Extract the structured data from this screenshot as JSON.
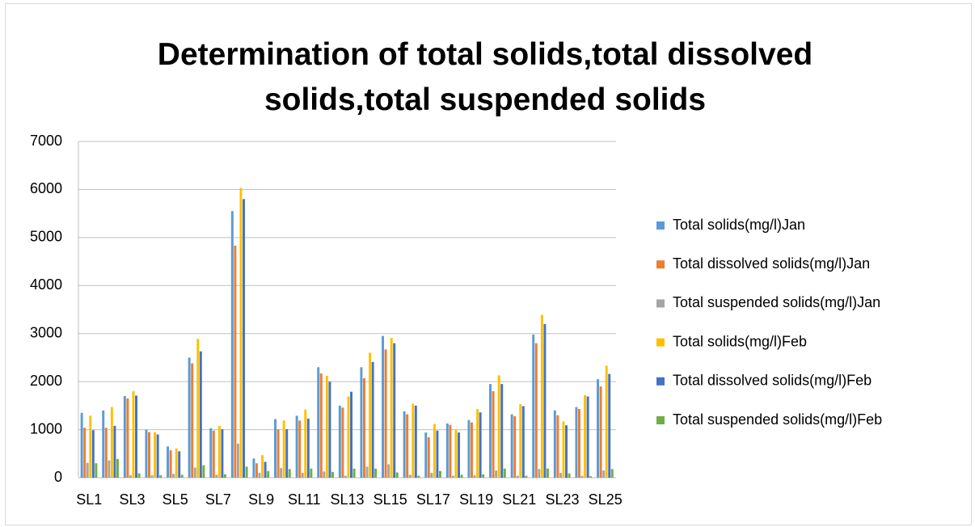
{
  "chart_data": {
    "type": "bar",
    "title": "Determination of total solids,total dissolved solids,total suspended solids",
    "categories": [
      "SL1",
      null,
      "SL3",
      null,
      "SL5",
      null,
      "SL7",
      null,
      "SL9",
      null,
      "SL11",
      null,
      "SL13",
      null,
      "SL15",
      null,
      "SL17",
      null,
      "SL19",
      null,
      "SL21",
      null,
      "SL23",
      null,
      "SL25"
    ],
    "series": [
      {
        "name": "Total solids(mg/l)Jan",
        "color": "#5b9bd5",
        "values": [
          1350,
          1400,
          1700,
          1000,
          650,
          2500,
          1030,
          5550,
          400,
          1220,
          1290,
          2300,
          1500,
          2300,
          2950,
          1380,
          940,
          1130,
          1200,
          1950,
          1320,
          2980,
          1400,
          1470,
          2050
        ]
      },
      {
        "name": "Total dissolved solids(mg/l)Jan",
        "color": "#ed7d31",
        "values": [
          1040,
          1040,
          1650,
          950,
          570,
          2380,
          980,
          4830,
          300,
          1010,
          1190,
          2170,
          1460,
          2070,
          2670,
          1320,
          840,
          1100,
          1150,
          1800,
          1280,
          2800,
          1300,
          1430,
          1900
        ]
      },
      {
        "name": "Total suspended solids(mg/l)Jan",
        "color": "#a5a5a5",
        "values": [
          310,
          360,
          50,
          50,
          80,
          210,
          60,
          710,
          100,
          200,
          100,
          130,
          40,
          230,
          280,
          60,
          100,
          40,
          50,
          150,
          40,
          180,
          100,
          40,
          150
        ]
      },
      {
        "name": "Total solids(mg/l)Feb",
        "color": "#ffc000",
        "values": [
          1290,
          1470,
          1800,
          950,
          610,
          2890,
          1080,
          6030,
          470,
          1190,
          1420,
          2120,
          1690,
          2600,
          2910,
          1540,
          1120,
          1000,
          1430,
          2130,
          1530,
          3390,
          1170,
          1720,
          2330
        ]
      },
      {
        "name": "Total dissolved solids(mg/l)Feb",
        "color": "#4472c4",
        "values": [
          990,
          1080,
          1710,
          900,
          550,
          2630,
          1010,
          5800,
          330,
          1010,
          1230,
          2000,
          1790,
          2410,
          2800,
          1500,
          980,
          940,
          1360,
          1950,
          1490,
          3200,
          1090,
          1690,
          2160
        ]
      },
      {
        "name": "Total suspended solids(mg/l)Feb",
        "color": "#70ad47",
        "values": [
          300,
          390,
          90,
          50,
          60,
          260,
          70,
          230,
          140,
          180,
          190,
          120,
          190,
          190,
          110,
          40,
          140,
          60,
          70,
          190,
          40,
          190,
          90,
          30,
          180
        ]
      }
    ],
    "ylim": [
      0,
      7000
    ],
    "yticks": [
      0,
      1000,
      2000,
      3000,
      4000,
      5000,
      6000,
      7000
    ],
    "grid": true,
    "legend": "right"
  }
}
